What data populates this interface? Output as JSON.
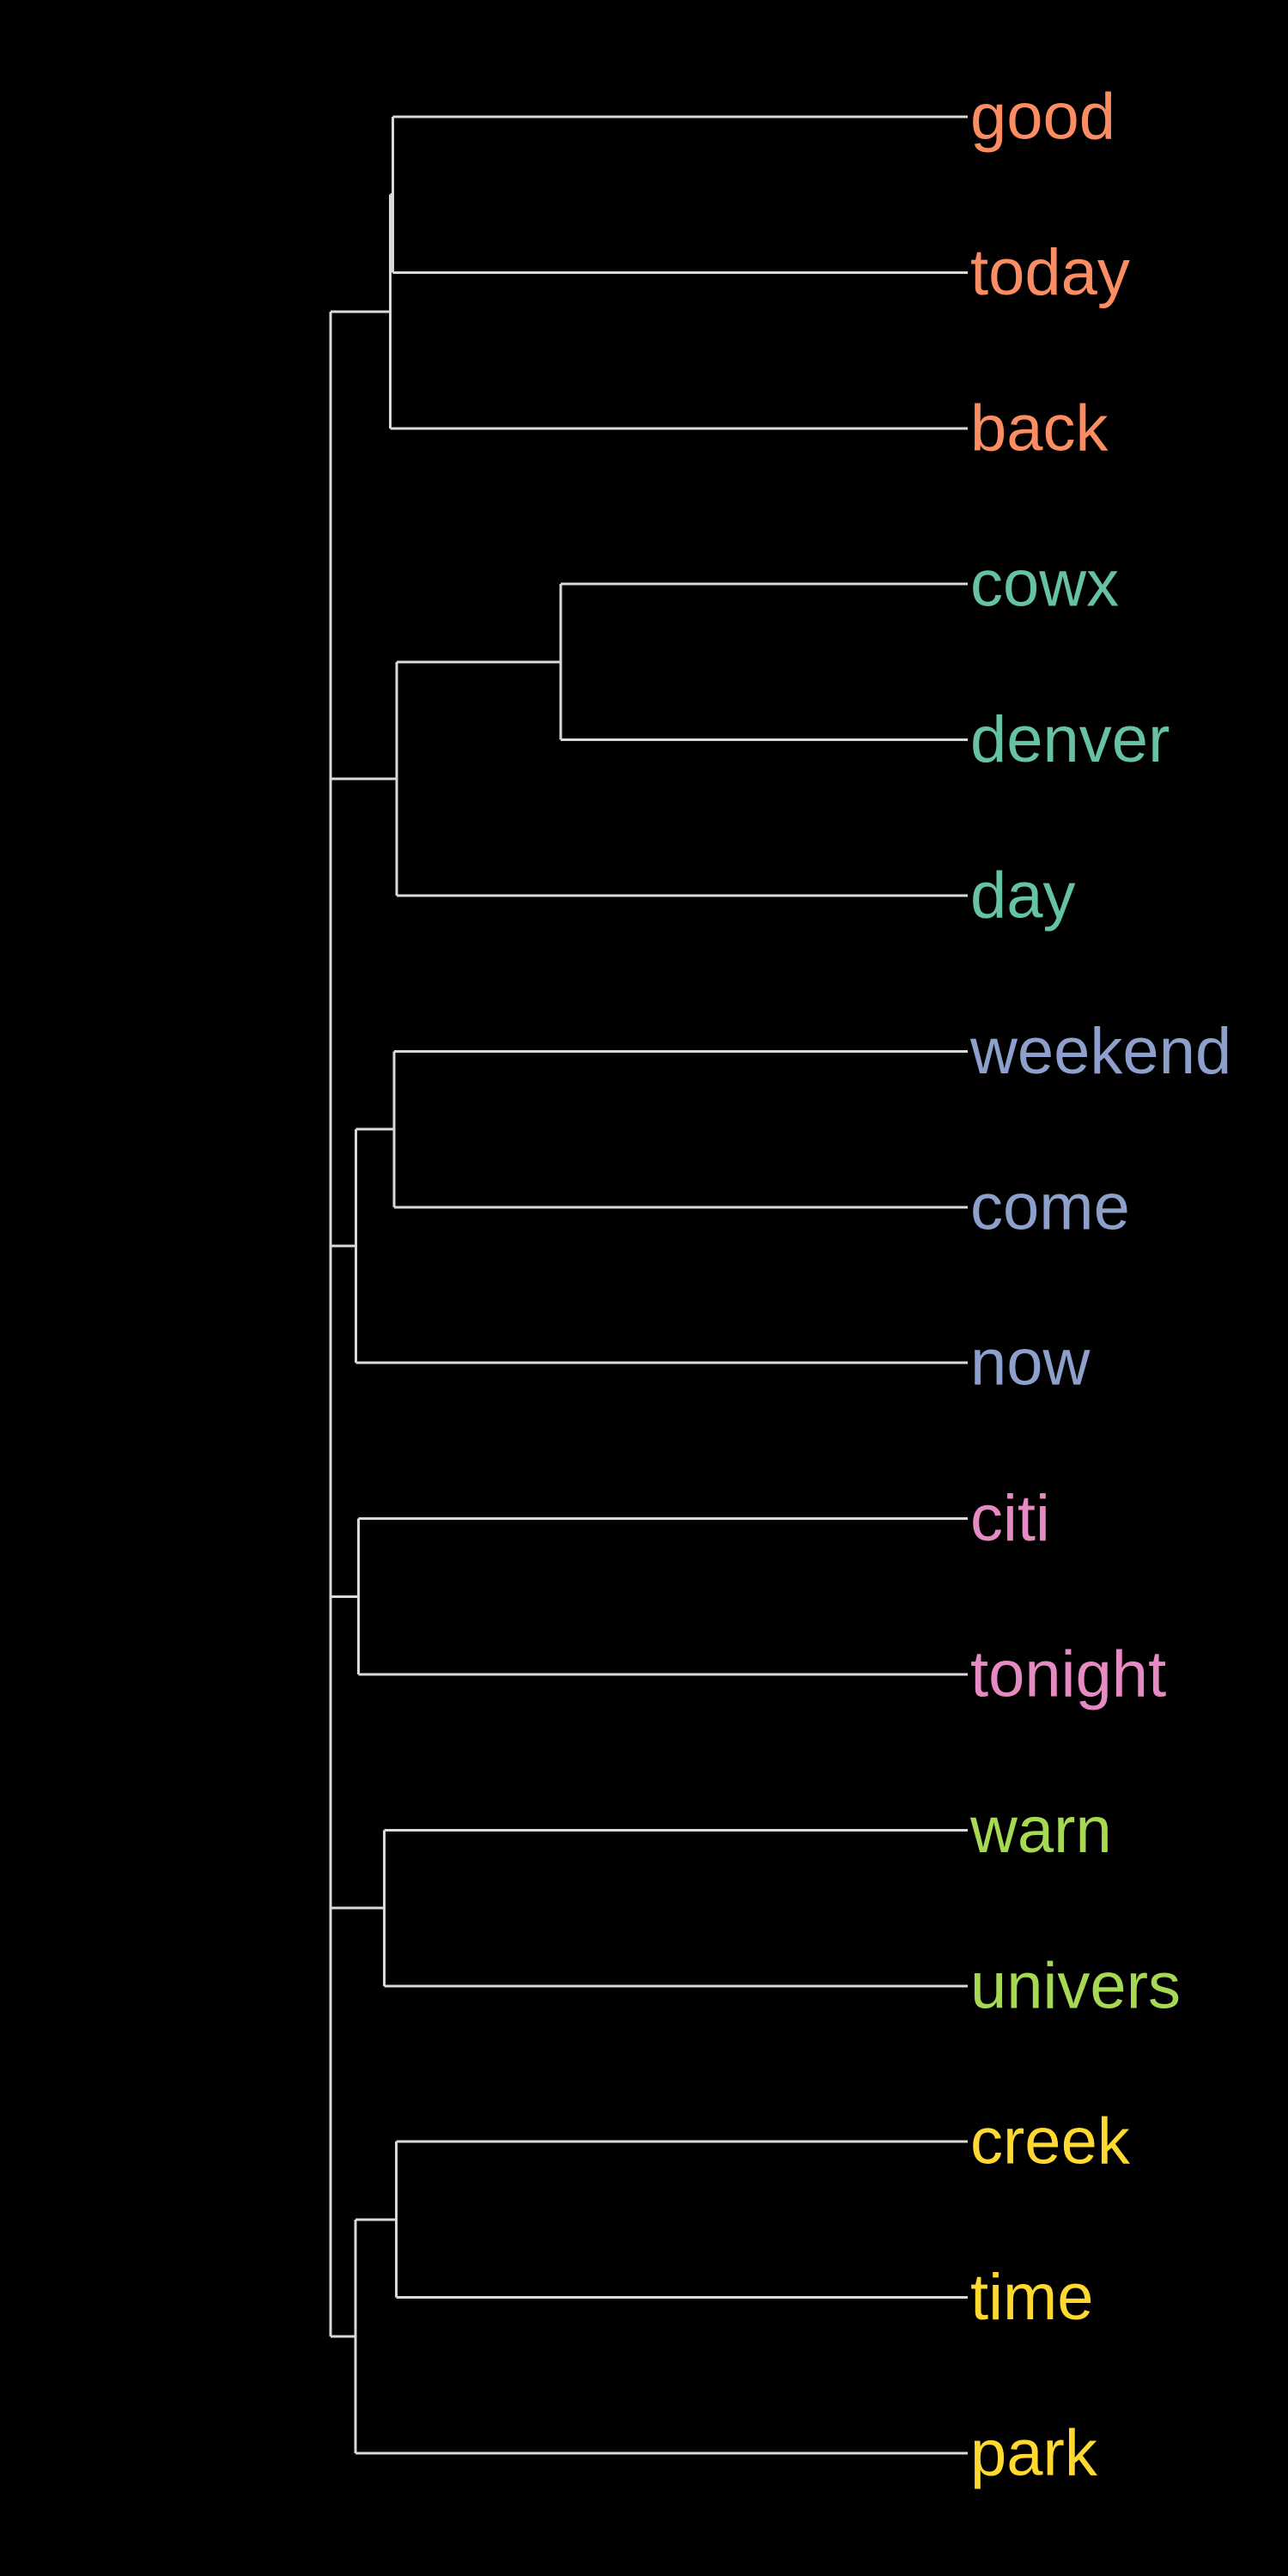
{
  "chart_data": {
    "type": "dendrogram",
    "orientation": "root-left, leaves-right",
    "colors": {
      "background": "#000000",
      "branch": "#d9d9d9",
      "cluster_1": "#fc8d62",
      "cluster_2": "#66c2a5",
      "cluster_3": "#8da0cb",
      "cluster_4": "#e78ac3",
      "cluster_5": "#a6d854",
      "cluster_6": "#ffd92f"
    },
    "leaves": [
      {
        "label": "good",
        "cluster": "cluster_1"
      },
      {
        "label": "today",
        "cluster": "cluster_1"
      },
      {
        "label": "back",
        "cluster": "cluster_1"
      },
      {
        "label": "cowx",
        "cluster": "cluster_2"
      },
      {
        "label": "denver",
        "cluster": "cluster_2"
      },
      {
        "label": "day",
        "cluster": "cluster_2"
      },
      {
        "label": "weekend",
        "cluster": "cluster_3"
      },
      {
        "label": "come",
        "cluster": "cluster_3"
      },
      {
        "label": "now",
        "cluster": "cluster_3"
      },
      {
        "label": "citi",
        "cluster": "cluster_4"
      },
      {
        "label": "tonight",
        "cluster": "cluster_4"
      },
      {
        "label": "warn",
        "cluster": "cluster_5"
      },
      {
        "label": "univers",
        "cluster": "cluster_5"
      },
      {
        "label": "creek",
        "cluster": "cluster_6"
      },
      {
        "label": "time",
        "cluster": "cluster_6"
      },
      {
        "label": "park",
        "cluster": "cluster_6"
      }
    ],
    "merges": [
      {
        "id": "m_good_today",
        "children": [
          "good",
          "today"
        ],
        "height": 0.902
      },
      {
        "id": "m_c1",
        "children": [
          "m_good_today",
          "back"
        ],
        "height": 0.906
      },
      {
        "id": "m_cowx_denver",
        "children": [
          "cowx",
          "denver"
        ],
        "height": 0.639
      },
      {
        "id": "m_c2",
        "children": [
          "m_cowx_denver",
          "day"
        ],
        "height": 0.896
      },
      {
        "id": "m_weekend_come",
        "children": [
          "weekend",
          "come"
        ],
        "height": 0.9
      },
      {
        "id": "m_c3",
        "children": [
          "m_weekend_come",
          "now"
        ],
        "height": 0.96
      },
      {
        "id": "m_c4",
        "children": [
          "citi",
          "tonight"
        ],
        "height": 0.956
      },
      {
        "id": "m_c5",
        "children": [
          "warn",
          "univers"
        ],
        "height": 0.916
      },
      {
        "id": "m_creek_time",
        "children": [
          "creek",
          "time"
        ],
        "height": 0.897
      },
      {
        "id": "m_c6",
        "children": [
          "m_creek_time",
          "park"
        ],
        "height": 0.961
      },
      {
        "id": "root",
        "children": [
          "m_c1",
          "m_c2",
          "m_c3",
          "m_c4",
          "m_c5",
          "m_c6"
        ],
        "height": 1.0
      }
    ]
  }
}
